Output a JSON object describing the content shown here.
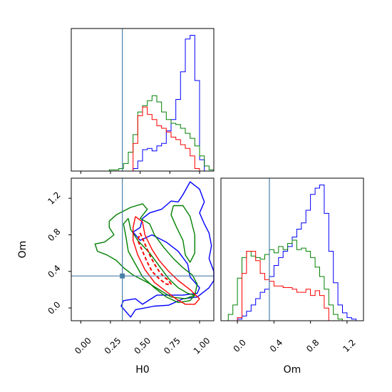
{
  "chart_data": {
    "type": "corner",
    "parameters": [
      "H0",
      "Om"
    ],
    "xlabel": "H0",
    "ylabel": "Om",
    "truths": {
      "H0": 0.35,
      "Om": 0.35
    },
    "truth_color": "#4a7fa7",
    "series_colors": [
      "#0000ff",
      "#008000",
      "#ff0000"
    ],
    "panels": {
      "h0_hist": {
        "xlim": [
          -0.08,
          1.12
        ],
        "xticks": [
          0.0,
          0.25,
          0.5,
          0.75,
          1.0
        ],
        "series": [
          {
            "color": "#0000ff",
            "bins": [
              0.44,
              0.48,
              0.52,
              0.56,
              0.6,
              0.64,
              0.68,
              0.72,
              0.76,
              0.8,
              0.84,
              0.88,
              0.92,
              0.96,
              1.0,
              1.04
            ],
            "counts": [
              2,
              8,
              17,
              18,
              16,
              20,
              22,
              32,
              41,
              57,
              79,
              105,
              108,
              72,
              9
            ]
          },
          {
            "color": "#008000",
            "bins": [
              0.24,
              0.28,
              0.32,
              0.36,
              0.4,
              0.44,
              0.48,
              0.52,
              0.56,
              0.6,
              0.64,
              0.68,
              0.72,
              0.76,
              0.8,
              0.84,
              0.88,
              0.92,
              0.96,
              1.0,
              1.04,
              1.08,
              1.12
            ],
            "counts": [
              1,
              1,
              2,
              6,
              15,
              29,
              47,
              52,
              56,
              60,
              55,
              47,
              41,
              38,
              37,
              34,
              30,
              26,
              20,
              12,
              4,
              1
            ]
          },
          {
            "color": "#ff0000",
            "bins": [
              0.44,
              0.48,
              0.52,
              0.56,
              0.6,
              0.64,
              0.68,
              0.72,
              0.76,
              0.8,
              0.84,
              0.88,
              0.92,
              0.96,
              1.0
            ],
            "counts": [
              22,
              44,
              51,
              45,
              41,
              36,
              34,
              31,
              27,
              25,
              21,
              18,
              12,
              2
            ]
          }
        ]
      },
      "scatter_2d": {
        "xlim": [
          -0.08,
          1.12
        ],
        "ylim": [
          -0.14,
          1.42
        ],
        "xticks": [
          0.0,
          0.25,
          0.5,
          0.75,
          1.0
        ],
        "yticks": [
          0.0,
          0.4,
          0.8,
          1.2
        ],
        "contours": [
          {
            "color": "#0000ff",
            "style": "solid",
            "points": [
              [
                0.44,
                0.83
              ],
              [
                0.5,
                0.88
              ],
              [
                0.52,
                0.98
              ],
              [
                0.58,
                1.04
              ],
              [
                0.68,
                1.08
              ],
              [
                0.76,
                1.17
              ],
              [
                0.82,
                1.16
              ],
              [
                0.86,
                1.24
              ],
              [
                0.92,
                1.38
              ],
              [
                1.0,
                1.3
              ],
              [
                1.04,
                1.16
              ],
              [
                1.0,
                1.04
              ],
              [
                1.04,
                0.92
              ],
              [
                1.08,
                0.82
              ],
              [
                1.1,
                0.68
              ],
              [
                1.08,
                0.54
              ],
              [
                1.12,
                0.4
              ],
              [
                1.12,
                0.3
              ],
              [
                1.08,
                0.22
              ],
              [
                0.98,
                0.12
              ],
              [
                0.86,
                0.1
              ],
              [
                0.74,
                0.03
              ],
              [
                0.62,
                0.02
              ],
              [
                0.54,
                0.0
              ],
              [
                0.46,
                -0.02
              ],
              [
                0.42,
                -0.1
              ],
              [
                0.34,
                0.02
              ],
              [
                0.36,
                0.08
              ],
              [
                0.46,
                0.1
              ],
              [
                0.52,
                0.04
              ],
              [
                0.64,
                0.14
              ],
              [
                0.86,
                0.14
              ],
              [
                0.98,
                0.16
              ],
              [
                1.0,
                0.22
              ],
              [
                0.92,
                0.34
              ],
              [
                0.9,
                0.48
              ],
              [
                0.82,
                0.62
              ],
              [
                0.72,
                0.72
              ],
              [
                0.6,
                0.8
              ],
              [
                0.5,
                0.74
              ],
              [
                0.44,
                0.83
              ]
            ]
          },
          {
            "color": "#008000",
            "style": "solid",
            "points": [
              [
                0.24,
                0.95
              ],
              [
                0.3,
                1.02
              ],
              [
                0.42,
                1.1
              ],
              [
                0.52,
                1.14
              ],
              [
                0.56,
                1.08
              ],
              [
                0.5,
                0.98
              ],
              [
                0.58,
                0.92
              ],
              [
                0.62,
                0.8
              ],
              [
                0.7,
                0.66
              ],
              [
                0.78,
                0.54
              ],
              [
                0.86,
                0.44
              ],
              [
                0.94,
                0.36
              ],
              [
                0.98,
                0.26
              ],
              [
                0.96,
                0.14
              ],
              [
                0.88,
                0.1
              ],
              [
                0.76,
                0.12
              ],
              [
                0.66,
                0.2
              ],
              [
                0.56,
                0.28
              ],
              [
                0.44,
                0.36
              ],
              [
                0.36,
                0.44
              ],
              [
                0.3,
                0.52
              ],
              [
                0.22,
                0.58
              ],
              [
                0.14,
                0.62
              ],
              [
                0.12,
                0.7
              ],
              [
                0.2,
                0.72
              ],
              [
                0.28,
                0.8
              ],
              [
                0.24,
                0.88
              ],
              [
                0.24,
                0.95
              ]
            ]
          },
          {
            "color": "#008000",
            "style": "solid",
            "points": [
              [
                0.78,
                1.12
              ],
              [
                0.86,
                1.12
              ],
              [
                0.92,
                1.0
              ],
              [
                0.96,
                0.8
              ],
              [
                0.96,
                0.6
              ],
              [
                0.92,
                0.5
              ],
              [
                0.88,
                0.58
              ],
              [
                0.86,
                0.74
              ],
              [
                0.8,
                0.9
              ],
              [
                0.76,
                1.02
              ],
              [
                0.78,
                1.12
              ]
            ]
          },
          {
            "color": "#008000",
            "style": "solid",
            "points": [
              [
                0.4,
                0.98
              ],
              [
                0.42,
                0.86
              ],
              [
                0.48,
                0.74
              ],
              [
                0.58,
                0.6
              ],
              [
                0.66,
                0.46
              ],
              [
                0.74,
                0.32
              ],
              [
                0.82,
                0.22
              ],
              [
                0.9,
                0.16
              ],
              [
                0.96,
                0.14
              ],
              [
                0.92,
                0.08
              ],
              [
                0.82,
                0.06
              ],
              [
                0.72,
                0.12
              ],
              [
                0.62,
                0.22
              ],
              [
                0.52,
                0.34
              ],
              [
                0.46,
                0.48
              ],
              [
                0.4,
                0.62
              ],
              [
                0.38,
                0.78
              ],
              [
                0.36,
                0.92
              ],
              [
                0.4,
                0.98
              ]
            ]
          },
          {
            "color": "#ff0000",
            "style": "solid",
            "points": [
              [
                0.46,
                1.0
              ],
              [
                0.52,
                0.94
              ],
              [
                0.54,
                0.8
              ],
              [
                0.6,
                0.64
              ],
              [
                0.66,
                0.52
              ],
              [
                0.74,
                0.4
              ],
              [
                0.82,
                0.3
              ],
              [
                0.92,
                0.2
              ],
              [
                1.0,
                0.1
              ],
              [
                0.96,
                0.04
              ],
              [
                0.88,
                0.04
              ],
              [
                0.8,
                0.1
              ],
              [
                0.72,
                0.18
              ],
              [
                0.62,
                0.28
              ],
              [
                0.54,
                0.42
              ],
              [
                0.48,
                0.58
              ],
              [
                0.44,
                0.74
              ],
              [
                0.44,
                0.88
              ],
              [
                0.46,
                1.0
              ]
            ]
          },
          {
            "color": "#ff0000",
            "style": "dashed",
            "points": [
              [
                0.5,
                0.82
              ],
              [
                0.54,
                0.7
              ],
              [
                0.58,
                0.58
              ],
              [
                0.62,
                0.48
              ],
              [
                0.66,
                0.4
              ],
              [
                0.7,
                0.34
              ],
              [
                0.74,
                0.3
              ],
              [
                0.76,
                0.26
              ],
              [
                0.72,
                0.26
              ],
              [
                0.66,
                0.32
              ],
              [
                0.6,
                0.4
              ],
              [
                0.56,
                0.5
              ],
              [
                0.52,
                0.62
              ],
              [
                0.48,
                0.74
              ],
              [
                0.5,
                0.82
              ]
            ]
          }
        ]
      },
      "om_hist": {
        "xlim": [
          -0.18,
          1.38
        ],
        "xticks": [
          0.0,
          0.4,
          0.8,
          1.2
        ],
        "series": [
          {
            "color": "#0000ff",
            "bins": [
              0.0,
              0.05,
              0.1,
              0.15,
              0.2,
              0.25,
              0.3,
              0.35,
              0.4,
              0.45,
              0.5,
              0.55,
              0.6,
              0.65,
              0.7,
              0.75,
              0.8,
              0.85,
              0.9,
              0.95,
              1.0,
              1.05,
              1.1,
              1.15,
              1.2,
              1.25,
              1.3,
              1.35
            ],
            "counts": [
              1,
              3,
              6,
              10,
              14,
              18,
              20,
              28,
              35,
              40,
              44,
              47,
              53,
              58,
              62,
              70,
              80,
              84,
              86,
              68,
              44,
              24,
              10,
              5,
              2,
              1,
              0
            ]
          },
          {
            "color": "#008000",
            "bins": [
              -0.1,
              -0.05,
              0.0,
              0.05,
              0.1,
              0.15,
              0.2,
              0.25,
              0.3,
              0.35,
              0.4,
              0.45,
              0.5,
              0.55,
              0.6,
              0.65,
              0.7,
              0.75,
              0.8,
              0.85,
              0.9,
              0.95,
              1.0,
              1.05,
              1.1,
              1.15
            ],
            "counts": [
              4,
              10,
              27,
              40,
              44,
              41,
              40,
              39,
              42,
              45,
              43,
              47,
              45,
              49,
              51,
              45,
              46,
              44,
              40,
              34,
              28,
              20,
              10,
              4,
              1
            ]
          },
          {
            "color": "#ff0000",
            "bins": [
              0.0,
              0.05,
              0.1,
              0.15,
              0.2,
              0.25,
              0.3,
              0.35,
              0.4,
              0.45,
              0.5,
              0.55,
              0.6,
              0.65,
              0.7,
              0.75,
              0.8,
              0.85,
              0.9,
              0.95,
              1.0
            ],
            "counts": [
              2,
              30,
              44,
              44,
              38,
              30,
              26,
              25,
              22,
              22,
              21,
              21,
              20,
              18,
              18,
              20,
              16,
              19,
              16,
              8
            ]
          }
        ]
      }
    }
  }
}
